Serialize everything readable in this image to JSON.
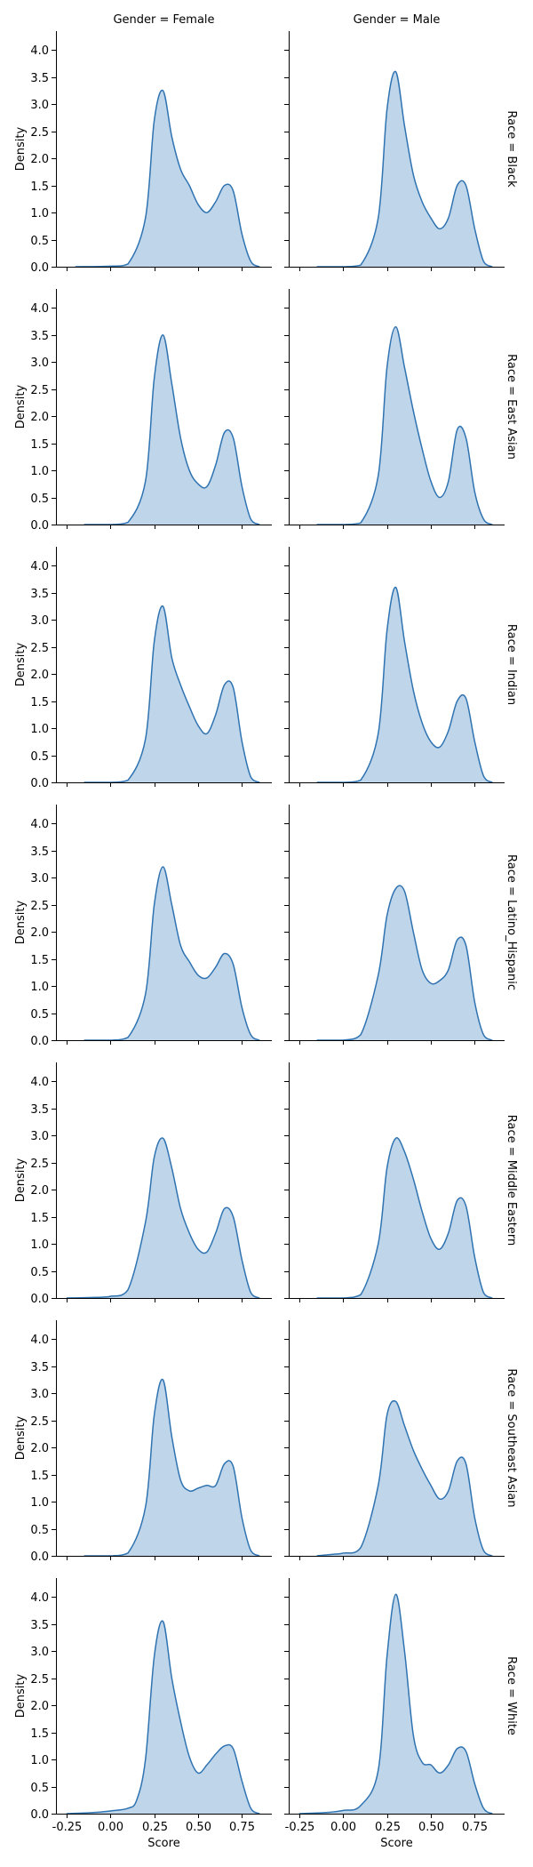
{
  "colors": {
    "line": "#2f73b1",
    "fill": "#bfd5ea"
  },
  "chart_data": {
    "type": "area",
    "layout": "facet-grid",
    "col_var_labels": [
      "Gender = Female",
      "Gender = Male"
    ],
    "row_var_labels": [
      "Race = Black",
      "Race = East Asian",
      "Race = Indian",
      "Race = Latino_Hispanic",
      "Race = Middle Eastern",
      "Race = Southeast Asian",
      "Race = White"
    ],
    "xlabel": "Score",
    "ylabel": "Density",
    "xlim": [
      -0.31,
      0.92
    ],
    "ylim": [
      0,
      4.35
    ],
    "x_ticks": [
      -0.25,
      0.0,
      0.25,
      0.5,
      0.75
    ],
    "x_tick_labels": [
      "-0.25",
      "0.00",
      "0.25",
      "0.50",
      "0.75"
    ],
    "y_ticks": [
      0,
      0.5,
      1,
      1.5,
      2,
      2.5,
      3,
      3.5,
      4
    ],
    "y_tick_labels": [
      "0.0",
      "0.5",
      "1.0",
      "1.5",
      "2.0",
      "2.5",
      "3.0",
      "3.5",
      "4.0"
    ],
    "panels": [
      {
        "race": "Black",
        "gender": "Female",
        "x": [
          -0.2,
          0.0,
          0.1,
          0.2,
          0.25,
          0.3,
          0.35,
          0.4,
          0.45,
          0.5,
          0.55,
          0.6,
          0.65,
          0.7,
          0.75,
          0.8,
          0.85
        ],
        "y": [
          0.0,
          0.01,
          0.05,
          0.9,
          2.7,
          3.25,
          2.4,
          1.8,
          1.5,
          1.15,
          1.0,
          1.2,
          1.5,
          1.4,
          0.6,
          0.1,
          0.0
        ]
      },
      {
        "race": "Black",
        "gender": "Male",
        "x": [
          -0.15,
          0.0,
          0.1,
          0.2,
          0.25,
          0.3,
          0.35,
          0.4,
          0.45,
          0.5,
          0.55,
          0.6,
          0.65,
          0.7,
          0.75,
          0.8,
          0.85
        ],
        "y": [
          0.0,
          0.0,
          0.03,
          0.9,
          2.9,
          3.6,
          2.6,
          1.7,
          1.2,
          0.9,
          0.7,
          0.9,
          1.5,
          1.5,
          0.7,
          0.1,
          0.0
        ]
      },
      {
        "race": "East Asian",
        "gender": "Female",
        "x": [
          -0.15,
          0.0,
          0.1,
          0.2,
          0.25,
          0.3,
          0.35,
          0.4,
          0.45,
          0.5,
          0.55,
          0.6,
          0.65,
          0.7,
          0.75,
          0.8,
          0.85
        ],
        "y": [
          0.0,
          0.0,
          0.04,
          0.8,
          2.7,
          3.5,
          2.6,
          1.6,
          1.0,
          0.75,
          0.7,
          1.1,
          1.7,
          1.6,
          0.7,
          0.1,
          0.0
        ]
      },
      {
        "race": "East Asian",
        "gender": "Male",
        "x": [
          -0.15,
          0.0,
          0.1,
          0.2,
          0.25,
          0.3,
          0.35,
          0.4,
          0.45,
          0.5,
          0.55,
          0.6,
          0.65,
          0.7,
          0.75,
          0.8,
          0.85
        ],
        "y": [
          0.0,
          0.0,
          0.03,
          0.9,
          2.9,
          3.65,
          2.9,
          2.1,
          1.4,
          0.8,
          0.5,
          0.8,
          1.75,
          1.6,
          0.6,
          0.1,
          0.0
        ]
      },
      {
        "race": "Indian",
        "gender": "Female",
        "x": [
          -0.15,
          0.0,
          0.1,
          0.2,
          0.25,
          0.3,
          0.35,
          0.4,
          0.45,
          0.5,
          0.55,
          0.6,
          0.65,
          0.7,
          0.75,
          0.8,
          0.85
        ],
        "y": [
          0.0,
          0.0,
          0.04,
          0.8,
          2.6,
          3.25,
          2.3,
          1.8,
          1.4,
          1.05,
          0.9,
          1.25,
          1.8,
          1.75,
          0.75,
          0.1,
          0.0
        ]
      },
      {
        "race": "Indian",
        "gender": "Male",
        "x": [
          -0.15,
          0.0,
          0.1,
          0.2,
          0.25,
          0.3,
          0.35,
          0.4,
          0.45,
          0.5,
          0.55,
          0.6,
          0.65,
          0.7,
          0.75,
          0.8,
          0.85
        ],
        "y": [
          0.0,
          0.0,
          0.04,
          0.9,
          2.8,
          3.6,
          2.6,
          1.7,
          1.1,
          0.75,
          0.65,
          0.95,
          1.5,
          1.55,
          0.75,
          0.12,
          0.0
        ]
      },
      {
        "race": "Latino_Hispanic",
        "gender": "Female",
        "x": [
          -0.15,
          0.0,
          0.1,
          0.2,
          0.25,
          0.3,
          0.35,
          0.4,
          0.45,
          0.5,
          0.55,
          0.6,
          0.65,
          0.7,
          0.75,
          0.8,
          0.85
        ],
        "y": [
          0.0,
          0.0,
          0.05,
          0.85,
          2.5,
          3.2,
          2.5,
          1.75,
          1.45,
          1.2,
          1.15,
          1.35,
          1.6,
          1.4,
          0.6,
          0.1,
          0.0
        ]
      },
      {
        "race": "Latino_Hispanic",
        "gender": "Male",
        "x": [
          -0.15,
          0.0,
          0.1,
          0.2,
          0.25,
          0.3,
          0.35,
          0.4,
          0.45,
          0.5,
          0.55,
          0.6,
          0.65,
          0.7,
          0.75,
          0.8,
          0.85
        ],
        "y": [
          0.0,
          0.0,
          0.1,
          1.2,
          2.3,
          2.8,
          2.75,
          2.0,
          1.3,
          1.05,
          1.1,
          1.3,
          1.85,
          1.75,
          0.7,
          0.1,
          0.0
        ]
      },
      {
        "race": "Middle Eastern",
        "gender": "Female",
        "x": [
          -0.25,
          -0.1,
          0.0,
          0.1,
          0.2,
          0.25,
          0.3,
          0.35,
          0.4,
          0.45,
          0.5,
          0.55,
          0.6,
          0.65,
          0.7,
          0.75,
          0.8,
          0.85
        ],
        "y": [
          0.0,
          0.01,
          0.03,
          0.15,
          1.4,
          2.6,
          2.95,
          2.4,
          1.65,
          1.2,
          0.9,
          0.85,
          1.2,
          1.65,
          1.5,
          0.7,
          0.1,
          0.0
        ]
      },
      {
        "race": "Middle Eastern",
        "gender": "Male",
        "x": [
          -0.15,
          0.0,
          0.1,
          0.2,
          0.25,
          0.3,
          0.35,
          0.4,
          0.45,
          0.5,
          0.55,
          0.6,
          0.65,
          0.7,
          0.75,
          0.8,
          0.85
        ],
        "y": [
          0.0,
          0.0,
          0.06,
          1.0,
          2.4,
          2.95,
          2.7,
          2.2,
          1.6,
          1.1,
          0.9,
          1.2,
          1.8,
          1.7,
          0.75,
          0.1,
          0.0
        ]
      },
      {
        "race": "Southeast Asian",
        "gender": "Female",
        "x": [
          -0.15,
          0.0,
          0.1,
          0.2,
          0.25,
          0.3,
          0.35,
          0.4,
          0.45,
          0.5,
          0.55,
          0.6,
          0.65,
          0.7,
          0.75,
          0.8,
          0.85
        ],
        "y": [
          0.0,
          0.0,
          0.05,
          0.9,
          2.6,
          3.25,
          2.2,
          1.4,
          1.2,
          1.25,
          1.3,
          1.3,
          1.7,
          1.65,
          0.7,
          0.1,
          0.0
        ]
      },
      {
        "race": "Southeast Asian",
        "gender": "Male",
        "x": [
          -0.15,
          -0.05,
          0.0,
          0.1,
          0.2,
          0.25,
          0.3,
          0.35,
          0.4,
          0.45,
          0.5,
          0.55,
          0.6,
          0.65,
          0.7,
          0.75,
          0.8,
          0.85
        ],
        "y": [
          0.0,
          0.03,
          0.05,
          0.15,
          1.3,
          2.6,
          2.85,
          2.4,
          1.95,
          1.6,
          1.3,
          1.05,
          1.2,
          1.75,
          1.7,
          0.7,
          0.1,
          0.0
        ]
      },
      {
        "race": "White",
        "gender": "Female",
        "x": [
          -0.25,
          -0.1,
          0.0,
          0.1,
          0.15,
          0.2,
          0.25,
          0.3,
          0.35,
          0.4,
          0.45,
          0.5,
          0.55,
          0.6,
          0.65,
          0.7,
          0.75,
          0.8,
          0.85
        ],
        "y": [
          0.0,
          0.02,
          0.05,
          0.1,
          0.25,
          1.0,
          2.9,
          3.55,
          2.5,
          1.7,
          1.05,
          0.75,
          0.9,
          1.1,
          1.25,
          1.2,
          0.6,
          0.1,
          0.0
        ]
      },
      {
        "race": "White",
        "gender": "Male",
        "x": [
          -0.25,
          -0.1,
          0.0,
          0.1,
          0.2,
          0.25,
          0.3,
          0.35,
          0.4,
          0.45,
          0.5,
          0.55,
          0.6,
          0.65,
          0.7,
          0.75,
          0.8,
          0.85
        ],
        "y": [
          0.0,
          0.02,
          0.06,
          0.15,
          0.8,
          2.9,
          4.05,
          3.0,
          1.45,
          0.95,
          0.9,
          0.75,
          0.9,
          1.2,
          1.15,
          0.55,
          0.1,
          0.0
        ]
      }
    ]
  }
}
